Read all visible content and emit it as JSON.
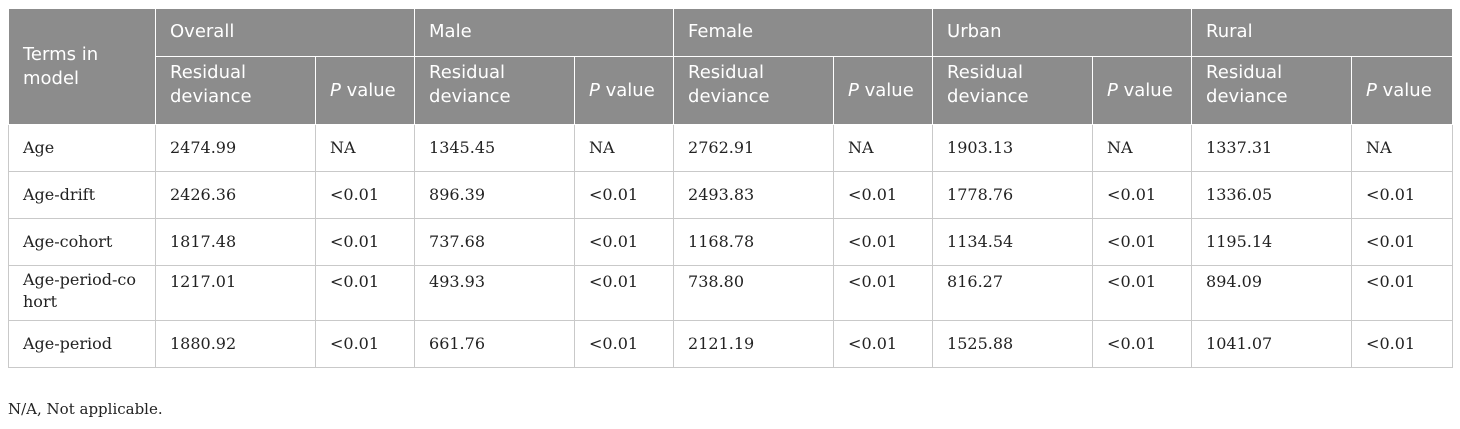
{
  "table": {
    "row_header": "Terms in model",
    "groups": [
      "Overall",
      "Male",
      "Female",
      "Urban",
      "Rural"
    ],
    "sub_headers": {
      "residual": "Residual deviance",
      "p_italic": "P",
      "p_rest": " value"
    },
    "rows": [
      {
        "term": "Age",
        "cells": [
          "2474.99",
          "NA",
          "1345.45",
          "NA",
          "2762.91",
          "NA",
          "1903.13",
          "NA",
          "1337.31",
          "NA"
        ]
      },
      {
        "term": "Age-drift",
        "cells": [
          "2426.36",
          "<0.01",
          "896.39",
          "<0.01",
          "2493.83",
          "<0.01",
          "1778.76",
          "<0.01",
          "1336.05",
          "<0.01"
        ]
      },
      {
        "term": "Age-cohort",
        "cells": [
          "1817.48",
          "<0.01",
          "737.68",
          "<0.01",
          "1168.78",
          "<0.01",
          "1134.54",
          "<0.01",
          "1195.14",
          "<0.01"
        ]
      },
      {
        "term": "Age-period-cohort",
        "cells": [
          "1217.01",
          "<0.01",
          "493.93",
          "<0.01",
          "738.80",
          "<0.01",
          "816.27",
          "<0.01",
          "894.09",
          "<0.01"
        ]
      },
      {
        "term": "Age-period",
        "cells": [
          "1880.92",
          "<0.01",
          "661.76",
          "<0.01",
          "2121.19",
          "<0.01",
          "1525.88",
          "<0.01",
          "1041.07",
          "<0.01"
        ]
      }
    ]
  },
  "footnote": "N/A, Not applicable."
}
